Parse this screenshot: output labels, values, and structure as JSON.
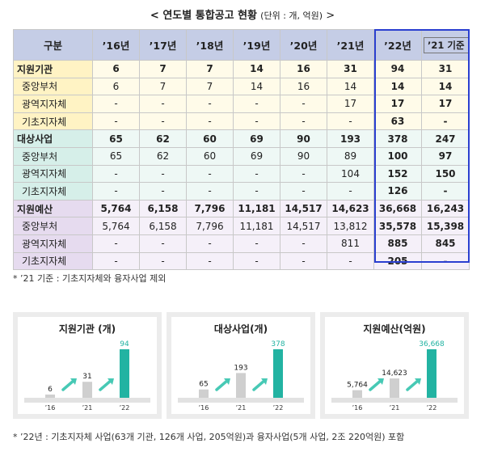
{
  "title": {
    "main": "< 연도별 통합공고 현황",
    "unit": "(단위 : 개, 억원)",
    "end": ">"
  },
  "table": {
    "headers": [
      "구분",
      "’16년",
      "’17년",
      "’18년",
      "’19년",
      "’20년",
      "’21년",
      "’22년",
      "’21 기준"
    ],
    "sections": [
      {
        "name": "지원기관",
        "values": [
          "6",
          "7",
          "7",
          "14",
          "16",
          "31",
          "94",
          "31"
        ],
        "subs": [
          {
            "name": "중앙부처",
            "values": [
              "6",
              "7",
              "7",
              "14",
              "16",
              "14",
              "14",
              "14"
            ]
          },
          {
            "name": "광역지자체",
            "values": [
              "-",
              "-",
              "-",
              "-",
              "-",
              "17",
              "17",
              "17"
            ]
          },
          {
            "name": "기초지자체",
            "values": [
              "-",
              "-",
              "-",
              "-",
              "-",
              "-",
              "63",
              "-"
            ]
          }
        ]
      },
      {
        "name": "대상사업",
        "values": [
          "65",
          "62",
          "60",
          "69",
          "90",
          "193",
          "378",
          "247"
        ],
        "subs": [
          {
            "name": "중앙부처",
            "values": [
              "65",
              "62",
              "60",
              "69",
              "90",
              "89",
              "100",
              "97"
            ]
          },
          {
            "name": "광역지자체",
            "values": [
              "-",
              "-",
              "-",
              "-",
              "-",
              "104",
              "152",
              "150"
            ]
          },
          {
            "name": "기초지자체",
            "values": [
              "-",
              "-",
              "-",
              "-",
              "-",
              "-",
              "126",
              "-"
            ]
          }
        ]
      },
      {
        "name": "지원예산",
        "values": [
          "5,764",
          "6,158",
          "7,796",
          "11,181",
          "14,517",
          "14,623",
          "36,668",
          "16,243"
        ],
        "subs": [
          {
            "name": "중앙부처",
            "values": [
              "5,764",
              "6,158",
              "7,796",
              "11,181",
              "14,517",
              "13,812",
              "35,578",
              "15,398"
            ]
          },
          {
            "name": "광역지자체",
            "values": [
              "-",
              "-",
              "-",
              "-",
              "-",
              "811",
              "885",
              "845"
            ]
          },
          {
            "name": "기초지자체",
            "values": [
              "-",
              "-",
              "-",
              "-",
              "-",
              "-",
              "205",
              "-"
            ]
          }
        ]
      }
    ]
  },
  "note1": "* ’21 기준 : 기초지자체와 융자사업 제외",
  "note2": "* ’22년 : 기초지자체 사업(63개 기관, 126개 사업, 205억원)과 융자사업(5개 사업, 2조 220억원) 포함",
  "colors": {
    "header": "#c5cde6",
    "sec1": "#fff3c4",
    "sec2": "#d6efe9",
    "sec3": "#e6dbef",
    "highlight": "#2a3fd0",
    "teal": "#22b3a2",
    "gray_bar": "#cfcfcf"
  },
  "chart_data": [
    {
      "type": "bar",
      "title": "지원기관 (개)",
      "categories": [
        "’16",
        "’21",
        "’22"
      ],
      "values": [
        6,
        31,
        94
      ],
      "labels": [
        "6",
        "31",
        "94"
      ]
    },
    {
      "type": "bar",
      "title": "대상사업(개)",
      "categories": [
        "’16",
        "’21",
        "’22"
      ],
      "values": [
        65,
        193,
        378
      ],
      "labels": [
        "65",
        "193",
        "378"
      ]
    },
    {
      "type": "bar",
      "title": "지원예산(억원)",
      "categories": [
        "’16",
        "’21",
        "’22"
      ],
      "values": [
        5764,
        14623,
        36668
      ],
      "labels": [
        "5,764",
        "14,623",
        "36,668"
      ]
    }
  ]
}
